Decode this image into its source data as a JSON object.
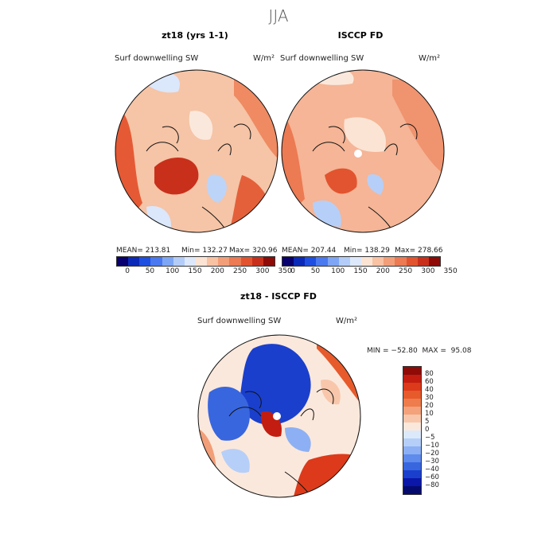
{
  "page": {
    "title": "JJA"
  },
  "panels": [
    {
      "title": "zt18 (yrs 1-1)",
      "variable": "Surf downwelling SW",
      "units": "W/m²",
      "stats": {
        "mean_label": "MEAN= 213.81",
        "min_label": "Min= 132.27",
        "max_label": "Max= 320.96"
      }
    },
    {
      "title": "ISCCP FD",
      "variable": "Surf downwelling SW",
      "units": "W/m²",
      "stats": {
        "mean_label": "MEAN= 207.44",
        "min_label": "Min= 138.29",
        "max_label": "Max= 278.66"
      }
    },
    {
      "title": "zt18 - ISCCP FD",
      "variable": "Surf downwelling SW",
      "units": "W/m²",
      "stats": {
        "minmax_label": "MIN = −52.80  MAX =  95.08"
      }
    }
  ],
  "colorbar_abs": {
    "ticks": [
      "0",
      "50",
      "100",
      "150",
      "200",
      "250",
      "300",
      "350"
    ],
    "colors": [
      "#08006e",
      "#0b2ab8",
      "#1f4fe0",
      "#4a79f0",
      "#7ea6f5",
      "#b3cdf8",
      "#dde9fb",
      "#fbe4d4",
      "#f8c2a3",
      "#f29e78",
      "#ec7a52",
      "#e2542f",
      "#c9301b",
      "#8e0b08"
    ]
  },
  "colorbar_diff": {
    "levels": [
      "80",
      "60",
      "40",
      "30",
      "20",
      "10",
      "5",
      "0",
      "−5",
      "−10",
      "−20",
      "−30",
      "−40",
      "−60",
      "−80"
    ],
    "colors": [
      "#8e0b08",
      "#c21d10",
      "#dc3a1a",
      "#e75a2b",
      "#ee7c4c",
      "#f3a27c",
      "#f8c7ab",
      "#fbe8dc",
      "#dce9fb",
      "#b6cff8",
      "#8cb0f3",
      "#5e8bec",
      "#3866df",
      "#1a3fcc",
      "#0a17a8",
      "#050b6e"
    ]
  }
}
